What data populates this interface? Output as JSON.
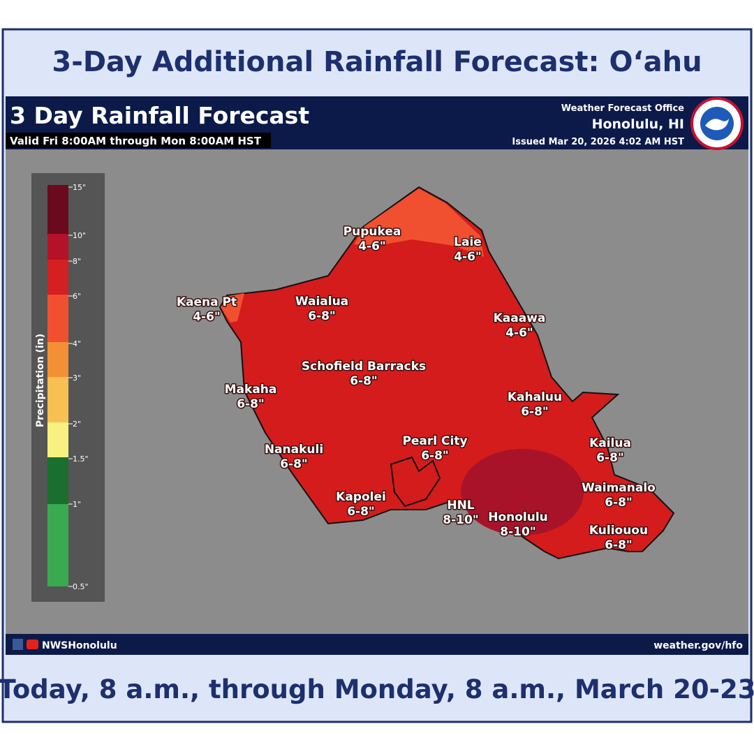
{
  "header": {
    "title": "3-Day Additional Rainfall Forecast: O‘ahu"
  },
  "map": {
    "title": "3 Day Rainfall Forecast",
    "valid": "Valid Fri 8:00AM through Mon 8:00AM HST",
    "office": "Weather Forecast Office",
    "location": "Honolulu, HI",
    "issued": "Issued Mar 20, 2026 4:02 AM HST",
    "legend": {
      "title": "Precipitation (in)",
      "labels": [
        "15\"",
        "10\"",
        "8\"",
        "6\"",
        "4\"",
        "3\"",
        "2\"",
        "1.5\"",
        "1\"",
        "0.5\""
      ]
    },
    "places": [
      {
        "name": "Pupukea",
        "amount": "4-6\""
      },
      {
        "name": "Laie",
        "amount": "4-6\""
      },
      {
        "name": "Kaena Pt",
        "amount": "4-6\""
      },
      {
        "name": "Waialua",
        "amount": "6-8\""
      },
      {
        "name": "Kaaawa",
        "amount": "4-6\""
      },
      {
        "name": "Schofield Barracks",
        "amount": "6-8\""
      },
      {
        "name": "Makaha",
        "amount": "6-8\""
      },
      {
        "name": "Kahaluu",
        "amount": "6-8\""
      },
      {
        "name": "Pearl City",
        "amount": "6-8\""
      },
      {
        "name": "Nanakuli",
        "amount": "6-8\""
      },
      {
        "name": "Kailua",
        "amount": "6-8\""
      },
      {
        "name": "Waimanalo",
        "amount": "6-8\""
      },
      {
        "name": "Kapolei",
        "amount": "6-8\""
      },
      {
        "name": "HNL",
        "amount": "8-10\""
      },
      {
        "name": "Honolulu",
        "amount": "8-10\""
      },
      {
        "name": "Kuliouou",
        "amount": "6-8\""
      }
    ],
    "social": "NWSHonolulu",
    "website": "weather.gov/hfo"
  },
  "footer": {
    "text": "Today, 8 a.m., through Monday, 8 a.m., March 20-23"
  }
}
